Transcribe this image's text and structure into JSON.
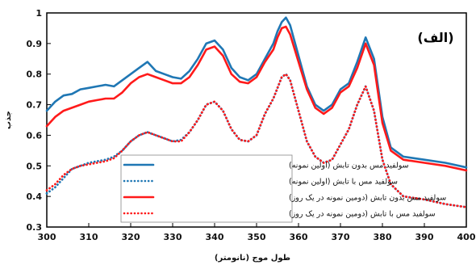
{
  "chart_data": {
    "type": "line",
    "panel_label": "(الف)",
    "xlabel": "طول موج (نانومتر)",
    "ylabel": "جذب",
    "xlim": [
      300,
      400
    ],
    "ylim": [
      0.3,
      1.0
    ],
    "xticks": [
      300,
      310,
      320,
      330,
      340,
      350,
      360,
      370,
      380,
      390,
      400
    ],
    "yticks": [
      0.3,
      0.4,
      0.5,
      0.6,
      0.7,
      0.8,
      0.9,
      1
    ],
    "grid": false,
    "legend_position": "center-bottom",
    "series": [
      {
        "name": "سولفید مس بدون تابش (اولین نمونه)",
        "color": "#1f77b4",
        "style": "solid",
        "points": [
          [
            300,
            0.68
          ],
          [
            302,
            0.71
          ],
          [
            304,
            0.73
          ],
          [
            306,
            0.735
          ],
          [
            308,
            0.75
          ],
          [
            310,
            0.755
          ],
          [
            312,
            0.76
          ],
          [
            314,
            0.765
          ],
          [
            316,
            0.76
          ],
          [
            318,
            0.78
          ],
          [
            320,
            0.8
          ],
          [
            322,
            0.82
          ],
          [
            324,
            0.84
          ],
          [
            326,
            0.81
          ],
          [
            328,
            0.8
          ],
          [
            330,
            0.79
          ],
          [
            332,
            0.785
          ],
          [
            334,
            0.81
          ],
          [
            336,
            0.85
          ],
          [
            338,
            0.9
          ],
          [
            340,
            0.91
          ],
          [
            342,
            0.88
          ],
          [
            344,
            0.82
          ],
          [
            346,
            0.79
          ],
          [
            348,
            0.78
          ],
          [
            350,
            0.8
          ],
          [
            352,
            0.85
          ],
          [
            354,
            0.9
          ],
          [
            355,
            0.94
          ],
          [
            356,
            0.97
          ],
          [
            357,
            0.985
          ],
          [
            358,
            0.96
          ],
          [
            360,
            0.86
          ],
          [
            362,
            0.76
          ],
          [
            364,
            0.7
          ],
          [
            366,
            0.68
          ],
          [
            368,
            0.7
          ],
          [
            370,
            0.75
          ],
          [
            372,
            0.77
          ],
          [
            374,
            0.84
          ],
          [
            376,
            0.92
          ],
          [
            378,
            0.85
          ],
          [
            380,
            0.66
          ],
          [
            382,
            0.56
          ],
          [
            385,
            0.53
          ],
          [
            390,
            0.52
          ],
          [
            395,
            0.51
          ],
          [
            400,
            0.495
          ]
        ]
      },
      {
        "name": "سولفید مس با تابش (اولین نمونه)",
        "color": "#1f77b4",
        "style": "dotted",
        "points": [
          [
            300,
            0.41
          ],
          [
            302,
            0.43
          ],
          [
            304,
            0.46
          ],
          [
            306,
            0.49
          ],
          [
            308,
            0.5
          ],
          [
            310,
            0.51
          ],
          [
            312,
            0.515
          ],
          [
            314,
            0.52
          ],
          [
            316,
            0.53
          ],
          [
            318,
            0.55
          ],
          [
            320,
            0.58
          ],
          [
            322,
            0.6
          ],
          [
            324,
            0.61
          ],
          [
            326,
            0.6
          ],
          [
            328,
            0.59
          ],
          [
            330,
            0.58
          ],
          [
            332,
            0.585
          ],
          [
            334,
            0.61
          ],
          [
            336,
            0.65
          ],
          [
            338,
            0.7
          ],
          [
            340,
            0.71
          ],
          [
            342,
            0.68
          ],
          [
            344,
            0.62
          ],
          [
            346,
            0.585
          ],
          [
            348,
            0.58
          ],
          [
            350,
            0.6
          ],
          [
            352,
            0.67
          ],
          [
            354,
            0.72
          ],
          [
            356,
            0.79
          ],
          [
            357,
            0.8
          ],
          [
            358,
            0.78
          ],
          [
            360,
            0.68
          ],
          [
            362,
            0.58
          ],
          [
            364,
            0.53
          ],
          [
            366,
            0.51
          ],
          [
            368,
            0.52
          ],
          [
            370,
            0.57
          ],
          [
            372,
            0.62
          ],
          [
            374,
            0.7
          ],
          [
            376,
            0.76
          ],
          [
            378,
            0.68
          ],
          [
            380,
            0.52
          ],
          [
            382,
            0.44
          ],
          [
            385,
            0.4
          ],
          [
            390,
            0.39
          ],
          [
            395,
            0.375
          ],
          [
            400,
            0.365
          ]
        ]
      },
      {
        "name": "سولفید مس بدون تابش (دومین نمونه در یک روز)",
        "color": "#ff1a1a",
        "style": "solid",
        "points": [
          [
            300,
            0.63
          ],
          [
            302,
            0.66
          ],
          [
            304,
            0.68
          ],
          [
            306,
            0.69
          ],
          [
            308,
            0.7
          ],
          [
            310,
            0.71
          ],
          [
            312,
            0.715
          ],
          [
            314,
            0.72
          ],
          [
            316,
            0.72
          ],
          [
            318,
            0.74
          ],
          [
            320,
            0.77
          ],
          [
            322,
            0.79
          ],
          [
            324,
            0.8
          ],
          [
            326,
            0.79
          ],
          [
            328,
            0.78
          ],
          [
            330,
            0.77
          ],
          [
            332,
            0.77
          ],
          [
            334,
            0.79
          ],
          [
            336,
            0.83
          ],
          [
            338,
            0.88
          ],
          [
            340,
            0.89
          ],
          [
            342,
            0.86
          ],
          [
            344,
            0.8
          ],
          [
            346,
            0.775
          ],
          [
            348,
            0.77
          ],
          [
            350,
            0.79
          ],
          [
            352,
            0.84
          ],
          [
            354,
            0.88
          ],
          [
            355,
            0.92
          ],
          [
            356,
            0.95
          ],
          [
            357,
            0.955
          ],
          [
            358,
            0.93
          ],
          [
            360,
            0.84
          ],
          [
            362,
            0.75
          ],
          [
            364,
            0.69
          ],
          [
            366,
            0.67
          ],
          [
            368,
            0.69
          ],
          [
            370,
            0.74
          ],
          [
            372,
            0.76
          ],
          [
            374,
            0.82
          ],
          [
            376,
            0.9
          ],
          [
            378,
            0.83
          ],
          [
            380,
            0.64
          ],
          [
            382,
            0.55
          ],
          [
            385,
            0.52
          ],
          [
            390,
            0.51
          ],
          [
            395,
            0.5
          ],
          [
            400,
            0.485
          ]
        ]
      },
      {
        "name": "سولفید مس با تابش (دومین نمونه در یک روز)",
        "color": "#ff1a1a",
        "style": "dotted",
        "points": [
          [
            300,
            0.42
          ],
          [
            302,
            0.44
          ],
          [
            304,
            0.47
          ],
          [
            306,
            0.49
          ],
          [
            308,
            0.5
          ],
          [
            310,
            0.505
          ],
          [
            312,
            0.51
          ],
          [
            314,
            0.515
          ],
          [
            316,
            0.525
          ],
          [
            318,
            0.55
          ],
          [
            320,
            0.58
          ],
          [
            322,
            0.6
          ],
          [
            324,
            0.61
          ],
          [
            326,
            0.6
          ],
          [
            328,
            0.59
          ],
          [
            330,
            0.58
          ],
          [
            332,
            0.58
          ],
          [
            334,
            0.61
          ],
          [
            336,
            0.65
          ],
          [
            338,
            0.7
          ],
          [
            340,
            0.71
          ],
          [
            342,
            0.68
          ],
          [
            344,
            0.62
          ],
          [
            346,
            0.585
          ],
          [
            348,
            0.58
          ],
          [
            350,
            0.6
          ],
          [
            352,
            0.67
          ],
          [
            354,
            0.72
          ],
          [
            356,
            0.79
          ],
          [
            357,
            0.8
          ],
          [
            358,
            0.78
          ],
          [
            360,
            0.68
          ],
          [
            362,
            0.58
          ],
          [
            364,
            0.53
          ],
          [
            366,
            0.51
          ],
          [
            368,
            0.52
          ],
          [
            370,
            0.57
          ],
          [
            372,
            0.62
          ],
          [
            374,
            0.7
          ],
          [
            376,
            0.76
          ],
          [
            378,
            0.68
          ],
          [
            380,
            0.52
          ],
          [
            382,
            0.44
          ],
          [
            385,
            0.4
          ],
          [
            390,
            0.39
          ],
          [
            395,
            0.375
          ],
          [
            400,
            0.365
          ]
        ]
      }
    ]
  }
}
